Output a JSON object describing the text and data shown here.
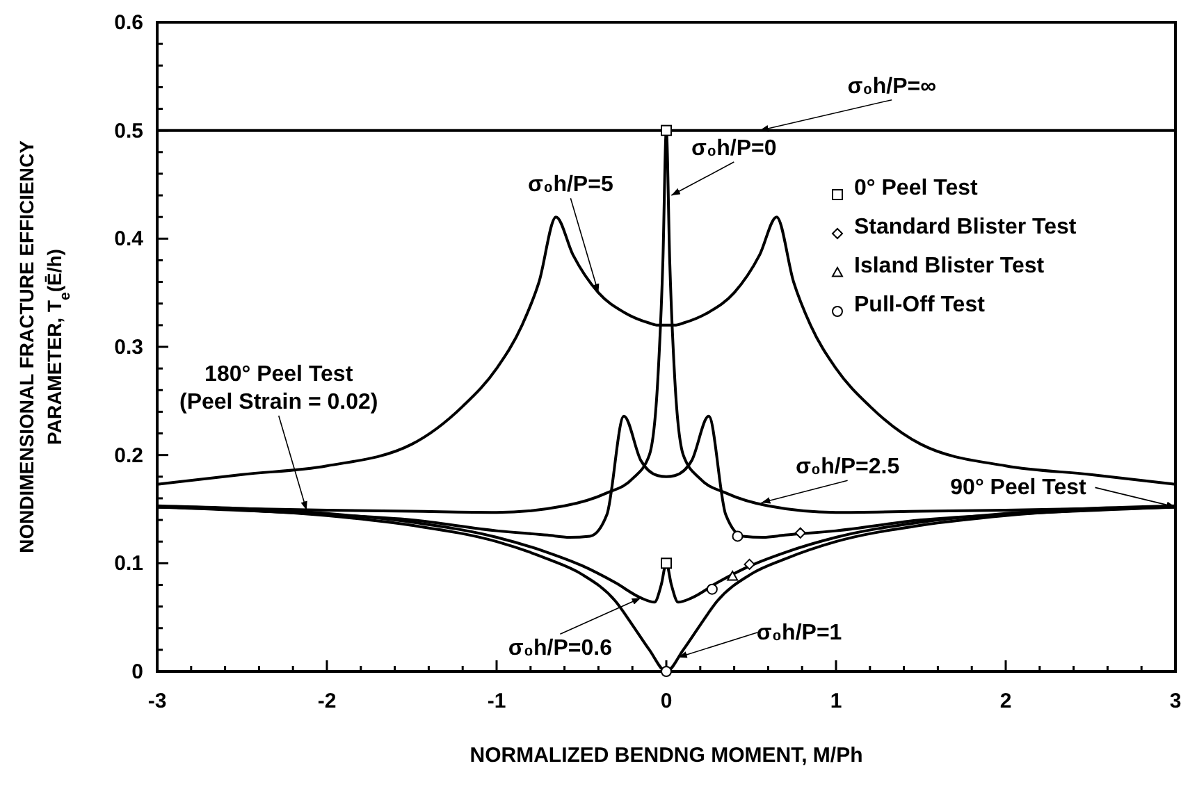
{
  "chart_data": {
    "type": "line",
    "xlabel": "NORMALIZED BENDNG MOMENT, M/Ph",
    "ylabel": "NONDIMENSIONAL FRACTURE EFFICIENCY\nPARAMETER, T$_{e}$(Ē/h)",
    "xlim": [
      -3,
      3
    ],
    "ylim": [
      0,
      0.6
    ],
    "xticks": [
      -3,
      {
        "value": -2.8,
        "label": null
      },
      {
        "value": -2.6,
        "label": null
      },
      {
        "value": -2.4,
        "label": null
      },
      {
        "value": -2.2,
        "label": null
      },
      -2,
      {
        "value": -1.8,
        "label": null
      },
      {
        "value": -1.6,
        "label": null
      },
      {
        "value": -1.4,
        "label": null
      },
      {
        "value": -1.2,
        "label": null
      },
      -1,
      {
        "value": -0.8,
        "label": null
      },
      {
        "value": -0.6,
        "label": null
      },
      {
        "value": -0.4,
        "label": null
      },
      {
        "value": -0.2,
        "label": null
      },
      0,
      {
        "value": 0.2,
        "label": null
      },
      {
        "value": 0.4,
        "label": null
      },
      {
        "value": 0.6,
        "label": null
      },
      {
        "value": 0.8,
        "label": null
      },
      1,
      {
        "value": 1.2,
        "label": null
      },
      {
        "value": 1.4,
        "label": null
      },
      {
        "value": 1.6,
        "label": null
      },
      {
        "value": 1.8,
        "label": null
      },
      2,
      {
        "value": 2.2,
        "label": null
      },
      {
        "value": 2.4,
        "label": null
      },
      {
        "value": 2.6,
        "label": null
      },
      {
        "value": 2.8,
        "label": null
      },
      3
    ],
    "yticks": [
      0,
      {
        "value": 0.02,
        "label": null
      },
      {
        "value": 0.04,
        "label": null
      },
      {
        "value": 0.06,
        "label": null
      },
      {
        "value": 0.08,
        "label": null
      },
      0.1,
      {
        "value": 0.12,
        "label": null
      },
      {
        "value": 0.14,
        "label": null
      },
      {
        "value": 0.16,
        "label": null
      },
      {
        "value": 0.18,
        "label": null
      },
      0.2,
      {
        "value": 0.22,
        "label": null
      },
      {
        "value": 0.24,
        "label": null
      },
      {
        "value": 0.26,
        "label": null
      },
      {
        "value": 0.28,
        "label": null
      },
      0.3,
      {
        "value": 0.32,
        "label": null
      },
      {
        "value": 0.34,
        "label": null
      },
      {
        "value": 0.36,
        "label": null
      },
      {
        "value": 0.38,
        "label": null
      },
      0.4,
      {
        "value": 0.42,
        "label": null
      },
      {
        "value": 0.44,
        "label": null
      },
      {
        "value": 0.46,
        "label": null
      },
      {
        "value": 0.48,
        "label": null
      },
      0.5,
      {
        "value": 0.52,
        "label": null
      },
      {
        "value": 0.54,
        "label": null
      },
      {
        "value": 0.56,
        "label": null
      },
      {
        "value": 0.58,
        "label": null
      },
      0.6
    ],
    "grid": false,
    "legend": "top right",
    "line_style": "solid",
    "series": [
      {
        "color": "#000000",
        "x": [
          -3,
          3
        ],
        "values": [
          0.5,
          0.5
        ]
      },
      {
        "color": "#000000",
        "x": [
          -3,
          -2.5,
          -2,
          -1.5,
          -1.2,
          -1,
          -0.85,
          -0.75,
          -0.65,
          -0.55,
          -0.4,
          -0.25,
          -0.1,
          -0.05,
          0.05,
          0.1,
          0.25,
          0.4,
          0.55,
          0.65,
          0.75,
          0.85,
          1,
          1.2,
          1.5,
          2,
          2.5,
          3
        ],
        "values": [
          0.173,
          0.182,
          0.19,
          0.21,
          0.245,
          0.28,
          0.32,
          0.36,
          0.42,
          0.385,
          0.35,
          0.332,
          0.322,
          0.32,
          0.32,
          0.322,
          0.332,
          0.35,
          0.385,
          0.42,
          0.36,
          0.32,
          0.28,
          0.245,
          0.21,
          0.19,
          0.182,
          0.173
        ]
      },
      {
        "color": "#000000",
        "x": [
          -3,
          -2,
          -1.5,
          -1,
          -0.6,
          -0.35,
          -0.2,
          -0.1,
          -0.05,
          -0.02,
          0,
          0.02,
          0.05,
          0.1,
          0.2,
          0.35,
          0.6,
          1,
          1.5,
          2,
          3
        ],
        "values": [
          0.152,
          0.149,
          0.148,
          0.147,
          0.153,
          0.165,
          0.178,
          0.2,
          0.27,
          0.38,
          0.5,
          0.38,
          0.27,
          0.2,
          0.178,
          0.165,
          0.153,
          0.147,
          0.148,
          0.149,
          0.152
        ]
      },
      {
        "color": "#000000",
        "x": [
          -3,
          -2,
          -1.5,
          -1,
          -0.7,
          -0.57,
          -0.45,
          -0.35,
          -0.25,
          -0.15,
          -0.05,
          0,
          0.05,
          0.15,
          0.25,
          0.35,
          0.45,
          0.57,
          0.7,
          1,
          1.5,
          2,
          3
        ],
        "values": [
          0.152,
          0.145,
          0.14,
          0.13,
          0.126,
          0.124,
          0.125,
          0.145,
          0.236,
          0.195,
          0.181,
          0.18,
          0.181,
          0.195,
          0.236,
          0.145,
          0.125,
          0.124,
          0.126,
          0.13,
          0.14,
          0.145,
          0.152
        ]
      },
      {
        "color": "#000000",
        "x": [
          -3,
          -2,
          -1.5,
          -1,
          -0.7,
          -0.5,
          -0.3,
          -0.15,
          -0.07,
          -0.03,
          0,
          0.03,
          0.07,
          0.15,
          0.3,
          0.5,
          0.7,
          1,
          1.5,
          2,
          3
        ],
        "values": [
          0.153,
          0.146,
          0.138,
          0.124,
          0.11,
          0.098,
          0.082,
          0.068,
          0.064,
          0.08,
          0.1,
          0.08,
          0.064,
          0.068,
          0.082,
          0.098,
          0.11,
          0.124,
          0.138,
          0.146,
          0.153
        ]
      },
      {
        "color": "#000000",
        "x": [
          -3,
          -2,
          -1.5,
          -1,
          -0.7,
          -0.5,
          -0.3,
          -0.2,
          -0.1,
          0,
          0.1,
          0.2,
          0.3,
          0.5,
          0.7,
          1,
          1.5,
          2,
          3
        ],
        "values": [
          0.152,
          0.144,
          0.135,
          0.12,
          0.104,
          0.09,
          0.065,
          0.043,
          0.02,
          0,
          0.02,
          0.043,
          0.065,
          0.09,
          0.104,
          0.12,
          0.135,
          0.144,
          0.152
        ]
      },
      {
        "type": "scatter",
        "name": "0° Peel Test",
        "marker": "square",
        "color": "#000000",
        "x": [
          0,
          0
        ],
        "values": [
          0.5,
          0.1
        ]
      },
      {
        "type": "scatter",
        "name": "Standard Blister Test",
        "marker": "diamond",
        "color": "#000000",
        "x": [
          0.49,
          0.79
        ],
        "values": [
          0.099,
          0.128
        ]
      },
      {
        "type": "scatter",
        "name": "Island Blister Test",
        "marker": "triangle",
        "color": "#000000",
        "x": [
          0.39
        ],
        "values": [
          0.088
        ]
      },
      {
        "type": "scatter",
        "name": "Pull-Off Test",
        "marker": "circle",
        "color": "#000000",
        "x": [
          0,
          0.27,
          0.42
        ],
        "values": [
          0,
          0.076,
          0.125
        ]
      }
    ],
    "annotations": [
      {
        "text": "σ₀h/P=∞",
        "x": 0.55,
        "y": 0.5
      },
      {
        "text": "σ₀h/P=0",
        "x": 0.03,
        "y": 0.44
      },
      {
        "text": "σ₀h/P=5",
        "x": -0.4,
        "y": 0.35
      },
      {
        "text": "σ₀h/P=2.5",
        "x": 0.56,
        "y": 0.156
      },
      {
        "text": "σ₀h/P=0.6",
        "x": -0.15,
        "y": 0.068
      },
      {
        "text": "σ₀h/P=1",
        "x": 0.07,
        "y": 0.013
      },
      {
        "text": "180° Peel Test\n(Peel Strain = 0.02)",
        "x": -2.12,
        "y": 0.149
      },
      {
        "text": "90° Peel Test",
        "x": 3,
        "y": 0.152
      }
    ]
  }
}
